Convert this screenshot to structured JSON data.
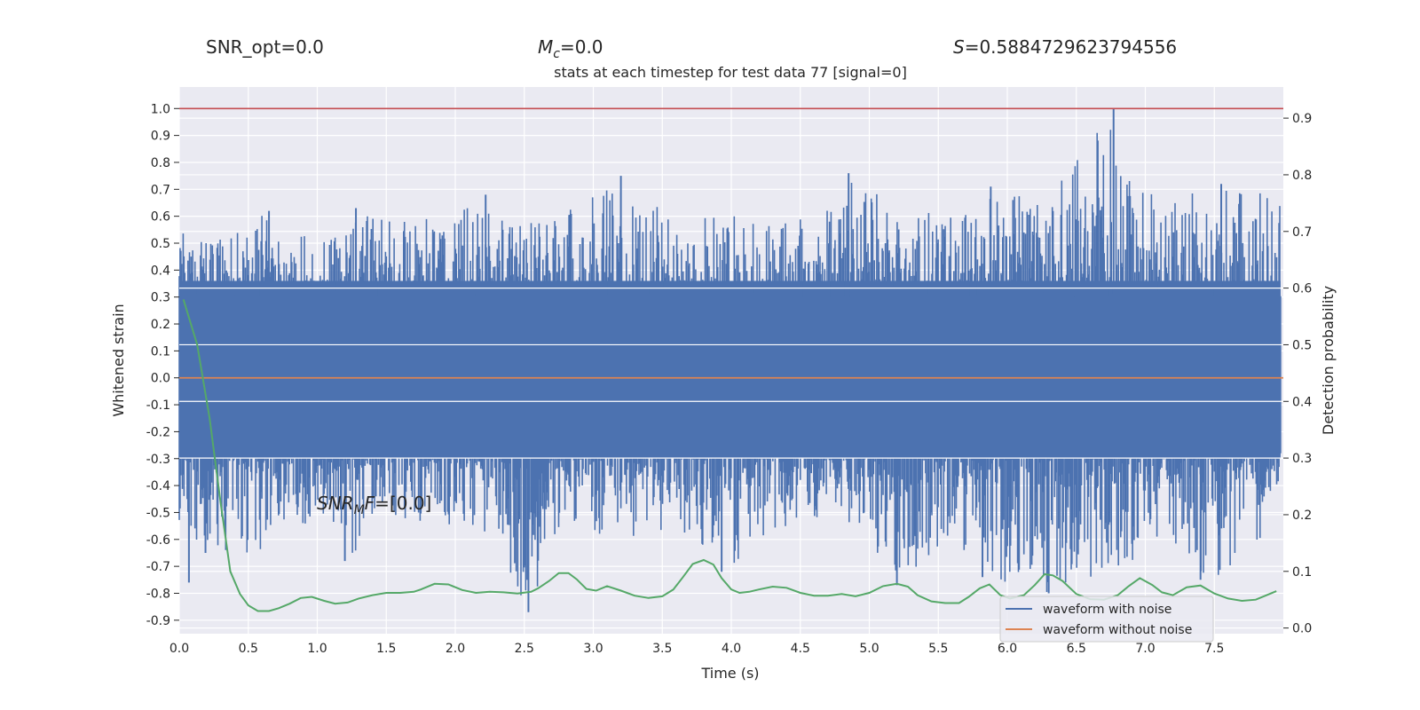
{
  "header": {
    "snr_opt": "SNR_opt=0.0",
    "mc": "=0.0",
    "s_stat": "=0.5884729623794556"
  },
  "chart_data": {
    "type": "line",
    "title": "stats at each timestep for test data 77 [signal=0]",
    "xlabel": "Time (s)",
    "ylabel": "Whitened strain",
    "y2label": "Detection probability",
    "annotation": "=[0.0]",
    "xlim": [
      0.0,
      8.0
    ],
    "ylim": [
      -0.95,
      1.08
    ],
    "y2lim": [
      -0.01,
      0.955
    ],
    "x_ticks": [
      "0.0",
      "0.5",
      "1.0",
      "1.5",
      "2.0",
      "2.5",
      "3.0",
      "3.5",
      "4.0",
      "4.5",
      "5.0",
      "5.5",
      "6.0",
      "6.5",
      "7.0",
      "7.5"
    ],
    "y_ticks": [
      "1.0",
      "0.9",
      "0.8",
      "0.7",
      "0.6",
      "0.5",
      "0.4",
      "0.3",
      "0.2",
      "0.1",
      "0.0",
      "-0.1",
      "-0.2",
      "-0.3",
      "-0.4",
      "-0.5",
      "-0.6",
      "-0.7",
      "-0.8",
      "-0.9"
    ],
    "y2_ticks": [
      "0.9",
      "0.8",
      "0.7",
      "0.6",
      "0.5",
      "0.4",
      "0.3",
      "0.2",
      "0.1",
      "0.0"
    ],
    "threshold_line": {
      "axis": "y",
      "value": 1.0,
      "color": "#c44e52"
    },
    "legend": {
      "position": "lower-right",
      "entries": [
        "waveform with noise",
        "waveform without noise"
      ]
    },
    "series": [
      {
        "name": "waveform with noise",
        "color": "#4c72b0",
        "envelope": {
          "x": [
            0.0,
            0.3,
            0.65,
            1.0,
            1.3,
            1.6,
            1.9,
            2.25,
            2.53,
            2.8,
            3.2,
            3.6,
            3.95,
            4.3,
            4.7,
            4.85,
            5.2,
            5.6,
            5.9,
            6.3,
            6.77,
            7.1,
            7.5,
            7.97
          ],
          "upper": [
            0.57,
            0.52,
            0.62,
            0.55,
            0.63,
            0.59,
            0.6,
            0.68,
            0.58,
            0.64,
            0.75,
            0.58,
            0.62,
            0.58,
            0.65,
            0.76,
            0.63,
            0.6,
            0.71,
            0.67,
            1.0,
            0.64,
            0.72,
            0.7
          ],
          "lower": [
            -0.76,
            -0.65,
            -0.66,
            -0.56,
            -0.68,
            -0.52,
            -0.55,
            -0.58,
            -0.87,
            -0.52,
            -0.62,
            -0.55,
            -0.72,
            -0.56,
            -0.52,
            -0.55,
            -0.77,
            -0.6,
            -0.75,
            -0.8,
            -0.72,
            -0.62,
            -0.75,
            -0.58
          ]
        },
        "spikes": [
          {
            "x": 0.07,
            "y": -0.76
          },
          {
            "x": 0.19,
            "y": -0.65
          },
          {
            "x": 0.65,
            "y": 0.62
          },
          {
            "x": 1.2,
            "y": -0.68
          },
          {
            "x": 1.28,
            "y": 0.63
          },
          {
            "x": 2.22,
            "y": 0.68
          },
          {
            "x": 2.53,
            "y": -0.87
          },
          {
            "x": 3.2,
            "y": 0.75
          },
          {
            "x": 3.93,
            "y": -0.72
          },
          {
            "x": 4.85,
            "y": 0.76
          },
          {
            "x": 5.2,
            "y": -0.77
          },
          {
            "x": 5.82,
            "y": -0.74
          },
          {
            "x": 5.88,
            "y": 0.71
          },
          {
            "x": 6.3,
            "y": -0.8
          },
          {
            "x": 6.77,
            "y": 1.0
          },
          {
            "x": 7.4,
            "y": -0.75
          },
          {
            "x": 7.55,
            "y": 0.72
          }
        ]
      },
      {
        "name": "waveform without noise",
        "color": "#dd8452",
        "x": [
          0.0,
          8.0
        ],
        "y": [
          0.0,
          0.0
        ]
      },
      {
        "axis": "y2",
        "color": "#55a868",
        "x": [
          0.03,
          0.13,
          0.22,
          0.3,
          0.37,
          0.44,
          0.5,
          0.57,
          0.65,
          0.72,
          0.8,
          0.88,
          0.96,
          1.05,
          1.13,
          1.22,
          1.3,
          1.4,
          1.5,
          1.6,
          1.7,
          1.75,
          1.85,
          1.95,
          2.05,
          2.15,
          2.25,
          2.35,
          2.45,
          2.55,
          2.6,
          2.68,
          2.75,
          2.82,
          2.88,
          2.95,
          3.02,
          3.1,
          3.2,
          3.3,
          3.4,
          3.5,
          3.58,
          3.65,
          3.72,
          3.8,
          3.87,
          3.93,
          4.0,
          4.06,
          4.13,
          4.2,
          4.3,
          4.4,
          4.5,
          4.6,
          4.7,
          4.8,
          4.9,
          5.0,
          5.1,
          5.2,
          5.28,
          5.35,
          5.45,
          5.55,
          5.65,
          5.72,
          5.8,
          5.87,
          5.95,
          6.02,
          6.12,
          6.2,
          6.27,
          6.33,
          6.4,
          6.5,
          6.6,
          6.7,
          6.8,
          6.88,
          6.96,
          7.05,
          7.12,
          7.2,
          7.3,
          7.4,
          7.5,
          7.6,
          7.7,
          7.8,
          7.88,
          7.95
        ],
        "y": [
          0.58,
          0.5,
          0.37,
          0.22,
          0.1,
          0.06,
          0.04,
          0.03,
          0.03,
          0.035,
          0.043,
          0.053,
          0.055,
          0.048,
          0.043,
          0.045,
          0.052,
          0.058,
          0.062,
          0.062,
          0.064,
          0.068,
          0.078,
          0.077,
          0.067,
          0.062,
          0.064,
          0.063,
          0.061,
          0.064,
          0.07,
          0.083,
          0.097,
          0.097,
          0.086,
          0.069,
          0.066,
          0.074,
          0.066,
          0.057,
          0.053,
          0.056,
          0.068,
          0.09,
          0.113,
          0.12,
          0.112,
          0.088,
          0.068,
          0.062,
          0.064,
          0.068,
          0.073,
          0.071,
          0.062,
          0.057,
          0.057,
          0.06,
          0.056,
          0.062,
          0.074,
          0.078,
          0.073,
          0.058,
          0.047,
          0.044,
          0.044,
          0.055,
          0.07,
          0.077,
          0.058,
          0.052,
          0.058,
          0.076,
          0.095,
          0.093,
          0.083,
          0.06,
          0.051,
          0.05,
          0.058,
          0.074,
          0.088,
          0.076,
          0.063,
          0.058,
          0.072,
          0.075,
          0.061,
          0.052,
          0.048,
          0.05,
          0.058,
          0.065
        ]
      }
    ]
  }
}
